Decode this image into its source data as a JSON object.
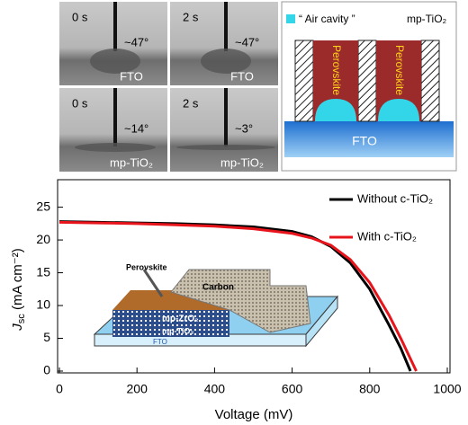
{
  "photos": [
    {
      "time": "0 s",
      "angle": "~47°",
      "substrate": "FTO"
    },
    {
      "time": "2 s",
      "angle": "~47°",
      "substrate": "FTO"
    },
    {
      "time": "0 s",
      "angle": "~14°",
      "substrate": "mp-TiO₂"
    },
    {
      "time": "2 s",
      "angle": "~3°",
      "substrate": "mp-TiO₂"
    }
  ],
  "schematic": {
    "legend": "“ Air cavity ”",
    "top_label": "mp-TiO₂",
    "columns": [
      "Perovskite",
      "Perovskite"
    ],
    "substrate": "FTO"
  },
  "inset": {
    "dropper": "Perovskite",
    "top": "Carbon",
    "layer1": "mp-ZrO₂",
    "layer2": "mp-TiO₂",
    "substrate": "FTO"
  },
  "chart_data": {
    "type": "line",
    "xlabel": "Voltage (mV)",
    "ylabel": [
      "J",
      "sc",
      " (mA cm⁻²)"
    ],
    "xlim": [
      0,
      1000
    ],
    "ylim": [
      0,
      27
    ],
    "xticks": [
      0,
      200,
      400,
      600,
      800,
      1000
    ],
    "yticks": [
      0,
      5,
      10,
      15,
      20,
      25
    ],
    "grid": false,
    "legend": "upper right",
    "series": [
      {
        "name": "Without c-TiO₂",
        "color": "#000000",
        "x": [
          0,
          100,
          200,
          300,
          400,
          500,
          600,
          650,
          700,
          750,
          800,
          850,
          880,
          905
        ],
        "values": [
          22.8,
          22.7,
          22.6,
          22.5,
          22.3,
          22.0,
          21.3,
          20.5,
          19.0,
          16.5,
          12.5,
          7.0,
          3.5,
          0
        ]
      },
      {
        "name": "With c-TiO₂",
        "color": "#e8141c",
        "x": [
          0,
          100,
          200,
          300,
          400,
          500,
          600,
          650,
          700,
          750,
          800,
          850,
          880,
          920
        ],
        "values": [
          22.7,
          22.6,
          22.5,
          22.3,
          22.1,
          21.7,
          21.0,
          20.3,
          19.2,
          17.0,
          13.5,
          8.5,
          5.0,
          0
        ]
      }
    ]
  }
}
